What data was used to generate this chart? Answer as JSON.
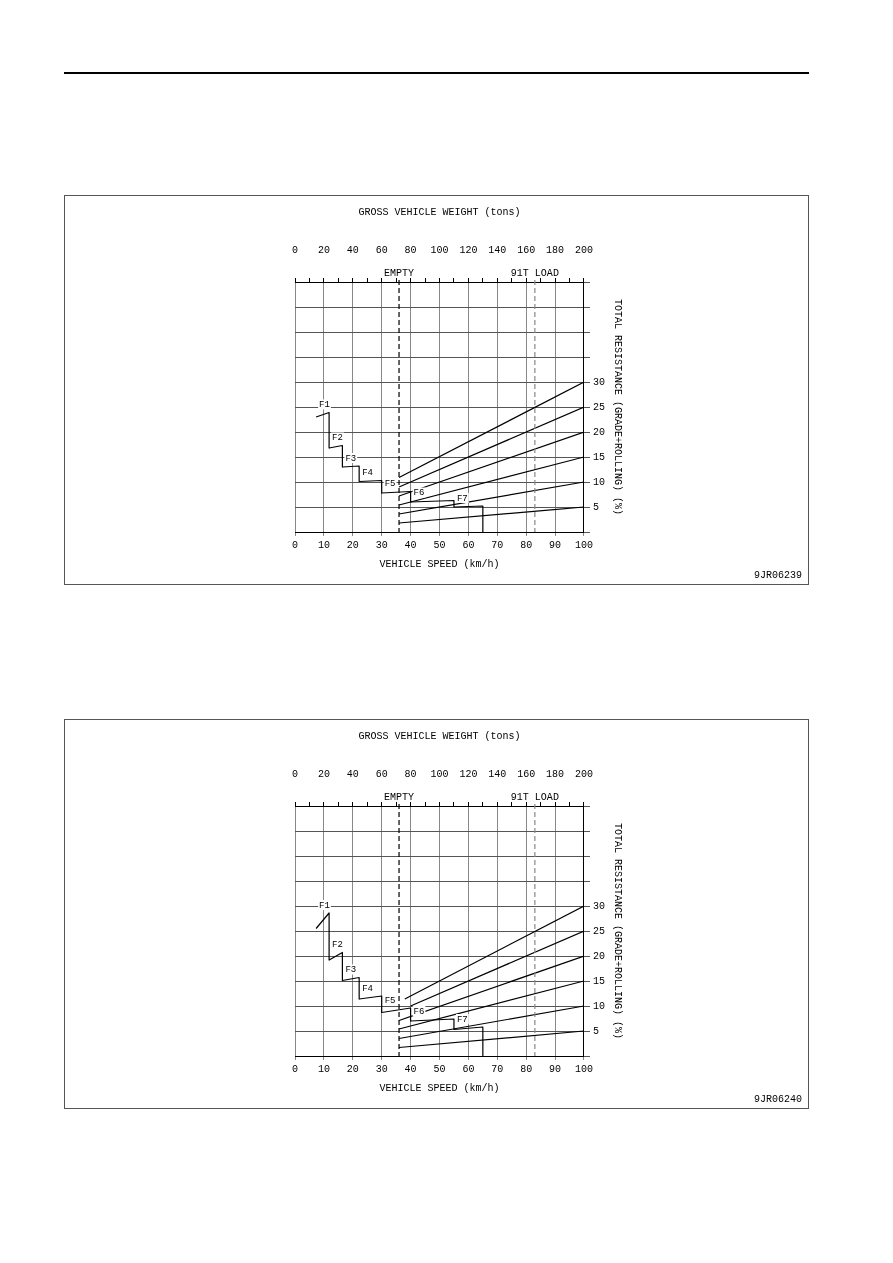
{
  "chart_data": [
    {
      "type": "line",
      "xlabel": "VEHICLE SPEED (km/h)",
      "x2label": "GROSS VEHICLE WEIGHT (tons)",
      "ylabel": "TOTAL RESISTANCE (GRADE+ROLLING) (%)",
      "xlim": [
        0,
        100
      ],
      "xticks": [
        0,
        10,
        20,
        30,
        40,
        50,
        60,
        70,
        80,
        90,
        100
      ],
      "x2lim": [
        0,
        200
      ],
      "x2ticks": [
        0,
        {
          "value": 10,
          "label": null
        },
        20,
        {
          "value": 30,
          "label": null
        },
        40,
        {
          "value": 50,
          "label": null
        },
        60,
        {
          "value": 70,
          "label": null
        },
        80,
        {
          "value": 90,
          "label": null
        },
        100,
        {
          "value": 110,
          "label": null
        },
        120,
        {
          "value": 130,
          "label": null
        },
        140,
        {
          "value": 150,
          "label": null
        },
        160,
        {
          "value": 170,
          "label": null
        },
        180,
        {
          "value": 190,
          "label": null
        },
        200
      ],
      "ylim": [
        0,
        50
      ],
      "yticks": [
        {
          "value": 0,
          "label": null
        },
        5,
        10,
        15,
        20,
        25,
        30,
        {
          "value": 35,
          "label": null
        },
        {
          "value": 40,
          "label": null
        },
        {
          "value": 45,
          "label": null
        },
        {
          "value": 50,
          "label": null
        }
      ],
      "grid": true,
      "legend": false,
      "marker": "none",
      "ref_lines": [
        {
          "axis": "x",
          "value": 36,
          "label": "EMPTY",
          "color": "#000000",
          "line_style": "dashed"
        },
        {
          "axis": "x",
          "value": 83,
          "label": "91T LOAD",
          "color": "#888888",
          "line_style": "dashed"
        }
      ],
      "annotations": [
        "9JR06239"
      ],
      "series": [
        {
          "name": "F1",
          "color": "#000000",
          "x": [
            7.3,
            11.8,
            11.8
          ],
          "values": [
            23.0,
            23.9,
            16.8
          ]
        },
        {
          "name": "F2",
          "color": "#000000",
          "x": [
            11.8,
            16.4,
            16.4
          ],
          "values": [
            16.8,
            17.3,
            13.0
          ]
        },
        {
          "name": "F3",
          "color": "#000000",
          "x": [
            16.4,
            22.2,
            22.2
          ],
          "values": [
            13.0,
            13.2,
            10.1
          ]
        },
        {
          "name": "F4",
          "color": "#000000",
          "x": [
            22.2,
            30,
            30
          ],
          "values": [
            10.1,
            10.3,
            7.8
          ]
        },
        {
          "name": "F5",
          "color": "#000000",
          "x": [
            30,
            40,
            40
          ],
          "values": [
            7.8,
            8.1,
            6.0
          ]
        },
        {
          "name": "F6",
          "color": "#000000",
          "x": [
            40,
            55,
            55
          ],
          "values": [
            6.0,
            6.3,
            5.0
          ]
        },
        {
          "name": "F7",
          "color": "#000000",
          "x": [
            55,
            65,
            65
          ],
          "values": [
            5.0,
            5.2,
            0
          ]
        },
        {
          "color": "#000000",
          "x": [
            36,
            100
          ],
          "values": [
            10.9,
            30
          ]
        },
        {
          "color": "#000000",
          "x": [
            36,
            100
          ],
          "values": [
            9.0,
            25
          ]
        },
        {
          "color": "#000000",
          "x": [
            36,
            100
          ],
          "values": [
            7.2,
            20
          ]
        },
        {
          "color": "#000000",
          "x": [
            36,
            100
          ],
          "values": [
            5.4,
            15
          ]
        },
        {
          "color": "#000000",
          "x": [
            36,
            100
          ],
          "values": [
            3.6,
            10
          ]
        },
        {
          "color": "#000000",
          "x": [
            36,
            100
          ],
          "values": [
            1.8,
            5
          ]
        }
      ]
    },
    {
      "type": "line",
      "xlabel": "VEHICLE SPEED (km/h)",
      "x2label": "GROSS VEHICLE WEIGHT (tons)",
      "ylabel": "TOTAL RESISTANCE (GRADE+ROLLING) (%)",
      "xlim": [
        0,
        100
      ],
      "xticks": [
        0,
        10,
        20,
        30,
        40,
        50,
        60,
        70,
        80,
        90,
        100
      ],
      "x2lim": [
        0,
        200
      ],
      "x2ticks": [
        0,
        {
          "value": 10,
          "label": null
        },
        20,
        {
          "value": 30,
          "label": null
        },
        40,
        {
          "value": 50,
          "label": null
        },
        60,
        {
          "value": 70,
          "label": null
        },
        80,
        {
          "value": 90,
          "label": null
        },
        100,
        {
          "value": 110,
          "label": null
        },
        120,
        {
          "value": 130,
          "label": null
        },
        140,
        {
          "value": 150,
          "label": null
        },
        160,
        {
          "value": 170,
          "label": null
        },
        180,
        {
          "value": 190,
          "label": null
        },
        200
      ],
      "ylim": [
        0,
        50
      ],
      "yticks": [
        {
          "value": 0,
          "label": null
        },
        5,
        10,
        15,
        20,
        25,
        30,
        {
          "value": 35,
          "label": null
        },
        {
          "value": 40,
          "label": null
        },
        {
          "value": 45,
          "label": null
        },
        {
          "value": 50,
          "label": null
        }
      ],
      "grid": true,
      "legend": false,
      "marker": "none",
      "ref_lines": [
        {
          "axis": "x",
          "value": 36,
          "label": "EMPTY",
          "color": "#000000",
          "line_style": "dashed"
        },
        {
          "axis": "x",
          "value": 83,
          "label": "91T LOAD",
          "color": "#888888",
          "line_style": "dashed"
        }
      ],
      "annotations": [
        "9JR06240"
      ],
      "series": [
        {
          "name": "F1",
          "color": "#000000",
          "x": [
            7.3,
            11.8,
            11.8
          ],
          "values": [
            25.5,
            28.6,
            19.2
          ]
        },
        {
          "name": "F2",
          "color": "#000000",
          "x": [
            11.8,
            16.4,
            16.4
          ],
          "values": [
            19.2,
            20.7,
            15.1
          ]
        },
        {
          "name": "F3",
          "color": "#000000",
          "x": [
            16.4,
            22.2,
            22.2
          ],
          "values": [
            15.1,
            15.7,
            11.4
          ]
        },
        {
          "name": "F4",
          "color": "#000000",
          "x": [
            22.2,
            30,
            30
          ],
          "values": [
            11.4,
            12.0,
            8.7
          ]
        },
        {
          "name": "F5",
          "color": "#000000",
          "x": [
            30,
            40,
            40
          ],
          "values": [
            8.7,
            9.6,
            7.0
          ]
        },
        {
          "name": "F6",
          "color": "#000000",
          "x": [
            40,
            55,
            55
          ],
          "values": [
            7.0,
            7.4,
            5.3
          ]
        },
        {
          "name": "F7",
          "color": "#000000",
          "x": [
            55,
            65,
            65
          ],
          "values": [
            5.3,
            5.8,
            0
          ]
        },
        {
          "color": "#000000",
          "x": [
            38,
            100
          ],
          "values": [
            11.4,
            30
          ]
        },
        {
          "color": "#000000",
          "x": [
            40,
            100
          ],
          "values": [
            10.0,
            25
          ]
        },
        {
          "color": "#000000",
          "x": [
            36,
            100
          ],
          "values": [
            7.1,
            20
          ]
        },
        {
          "color": "#000000",
          "x": [
            36,
            100
          ],
          "values": [
            5.4,
            15
          ]
        },
        {
          "color": "#000000",
          "x": [
            36,
            100
          ],
          "values": [
            3.5,
            10
          ]
        },
        {
          "color": "#000000",
          "x": [
            36,
            100
          ],
          "values": [
            1.7,
            5
          ]
        }
      ]
    }
  ]
}
